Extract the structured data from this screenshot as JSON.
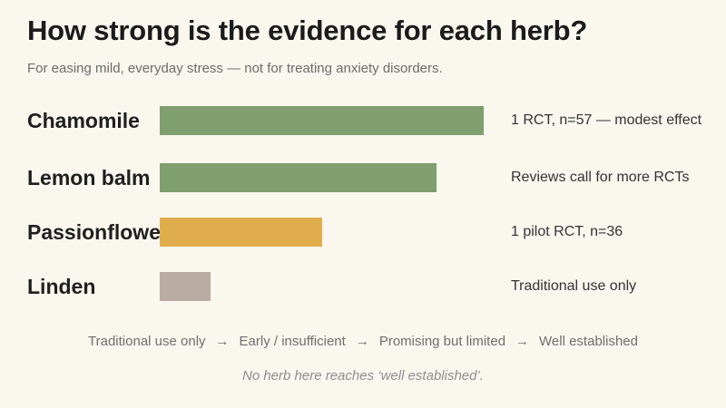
{
  "title": "How strong is the evidence for each herb?",
  "subtitle": "For easing mild, everyday stress — not for treating anxiety disorders.",
  "chart_data": {
    "type": "bar",
    "orientation": "horizontal",
    "title": "How strong is the evidence for each herb?",
    "subtitle": "For easing mild, everyday stress — not for treating anxiety disorders.",
    "categories": [
      "Chamomile",
      "Lemon balm",
      "Passionflower",
      "Linden"
    ],
    "values": [
      0.96,
      0.82,
      0.48,
      0.15
    ],
    "value_scale": "relative evidence strength (0 = none, 1 = well established)",
    "colors": [
      "#7f9f6e",
      "#7f9f6e",
      "#e0ad4d",
      "#b8ada0"
    ],
    "notes": [
      "1 RCT, n=57 — modest effect",
      "Reviews call for more RCTs",
      "1 pilot RCT, n=36",
      "Traditional use only"
    ],
    "scale_labels": [
      "Traditional use only",
      "Early / insufficient",
      "Promising but limited",
      "Well established"
    ],
    "scale_arrow": "→",
    "footnote": "No herb here reaches ‘well established’.",
    "xlabel": "",
    "ylabel": "",
    "grid": false,
    "legend": "none"
  }
}
